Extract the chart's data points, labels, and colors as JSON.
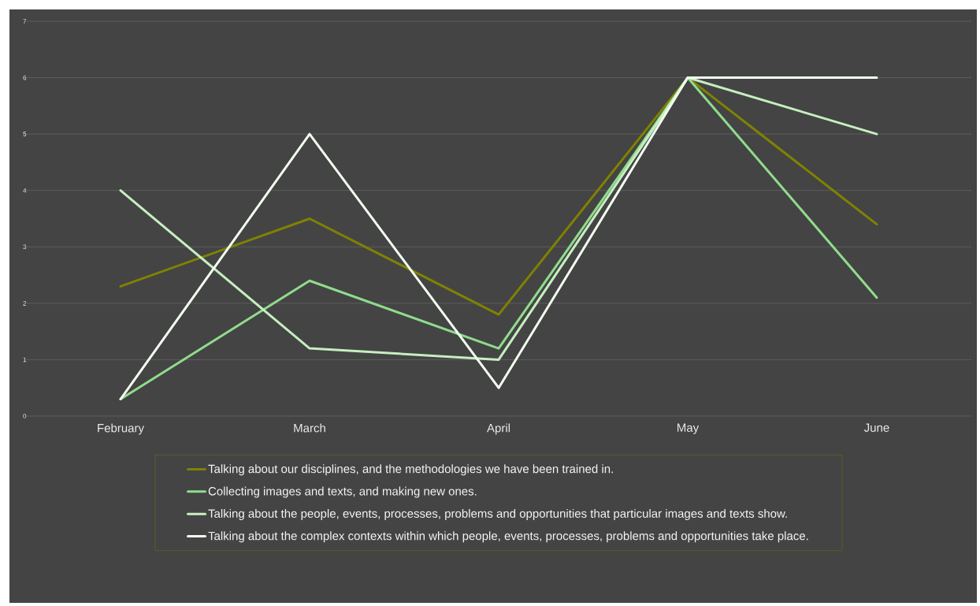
{
  "chart_data": {
    "type": "line",
    "categories": [
      "February",
      "March",
      "April",
      "May",
      "June"
    ],
    "series": [
      {
        "name": "Talking about our disciplines, and the methodologies we have been trained in.",
        "color": "#7f8200",
        "values": [
          2.3,
          3.5,
          1.8,
          6,
          3.4
        ]
      },
      {
        "name": "Collecting images and texts, and making new ones.",
        "color": "#90dc8c",
        "values": [
          0.3,
          2.4,
          1.2,
          6,
          2.1
        ]
      },
      {
        "name": "Talking about the people, events, processes, problems and opportunities that particular images and texts show.",
        "color": "#c6eec0",
        "values": [
          4,
          1.2,
          1.0,
          6,
          5
        ]
      },
      {
        "name": "Talking about the complex contexts within which people, events, processes, problems and opportunities take place.",
        "color": "#f2fff0",
        "values": [
          0.3,
          5,
          0.5,
          6,
          6
        ]
      }
    ],
    "ylim": [
      0,
      7
    ],
    "yticks": [
      0,
      1,
      2,
      3,
      4,
      5,
      6,
      7
    ],
    "grid": "y",
    "legend": "bottom",
    "marker": "none",
    "line_style": "solid"
  }
}
